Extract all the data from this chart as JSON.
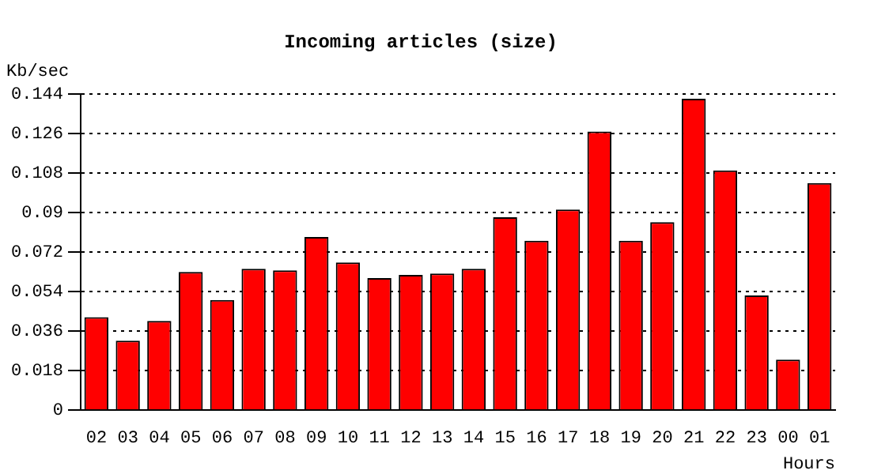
{
  "chart_data": {
    "type": "bar",
    "title": "Incoming articles (size)",
    "ylabel": "Kb/sec",
    "xlabel": "Hours",
    "categories": [
      "02",
      "03",
      "04",
      "05",
      "06",
      "07",
      "08",
      "09",
      "10",
      "11",
      "12",
      "13",
      "14",
      "15",
      "16",
      "17",
      "18",
      "19",
      "20",
      "21",
      "22",
      "23",
      "00",
      "01"
    ],
    "values": [
      0.0424,
      0.0317,
      0.0407,
      0.063,
      0.0502,
      0.0644,
      0.0637,
      0.0789,
      0.0673,
      0.0602,
      0.0616,
      0.0623,
      0.0644,
      0.0879,
      0.0772,
      0.0914,
      0.127,
      0.0772,
      0.0857,
      0.1419,
      0.1092,
      0.0523,
      0.023,
      0.1035
    ],
    "color": "#ff0000",
    "ylim": [
      0,
      0.144
    ],
    "yticks": [
      0,
      0.018,
      0.036,
      0.054,
      0.072,
      0.09,
      0.108,
      0.126,
      0.144
    ],
    "grid": "y",
    "line_style": "dotted"
  }
}
